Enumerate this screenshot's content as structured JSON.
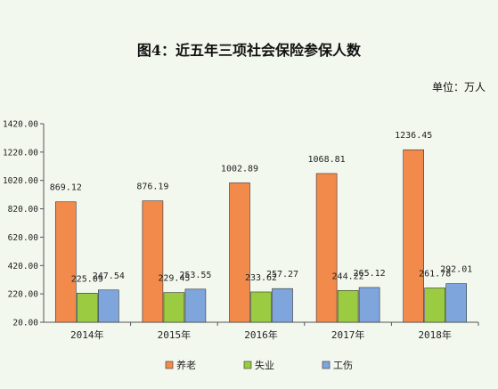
{
  "chart_data": {
    "type": "bar",
    "title": "图4：近五年三项社会保险参保人数",
    "unit_label": "单位：万人",
    "categories": [
      "2014年",
      "2015年",
      "2016年",
      "2017年",
      "2018年"
    ],
    "series": [
      {
        "name": "养老",
        "color": "#f28a4b",
        "values": [
          869.12,
          876.19,
          1002.89,
          1068.81,
          1236.45
        ],
        "labels": [
          "869.12",
          "876.19",
          "1002.89",
          "1068.81",
          "1236.45"
        ]
      },
      {
        "name": "失业",
        "color": "#9acb40",
        "values": [
          225.09,
          229.45,
          233.62,
          244.22,
          261.78
        ],
        "labels": [
          "225.09",
          "229.45",
          "233.62",
          "244.22",
          "261.78"
        ]
      },
      {
        "name": "工伤",
        "color": "#7ea6dd",
        "values": [
          247.54,
          253.55,
          257.27,
          265.12,
          292.01
        ],
        "labels": [
          "247.54",
          "253.55",
          "257.27",
          "265.12",
          "292.01"
        ]
      }
    ],
    "yticks": [
      "20.00",
      "220.00",
      "420.00",
      "620.00",
      "820.00",
      "1020.00",
      "1220.00",
      "1420.00"
    ],
    "ylim": [
      20,
      1420
    ],
    "grid": false,
    "legend_position": "bottom"
  }
}
